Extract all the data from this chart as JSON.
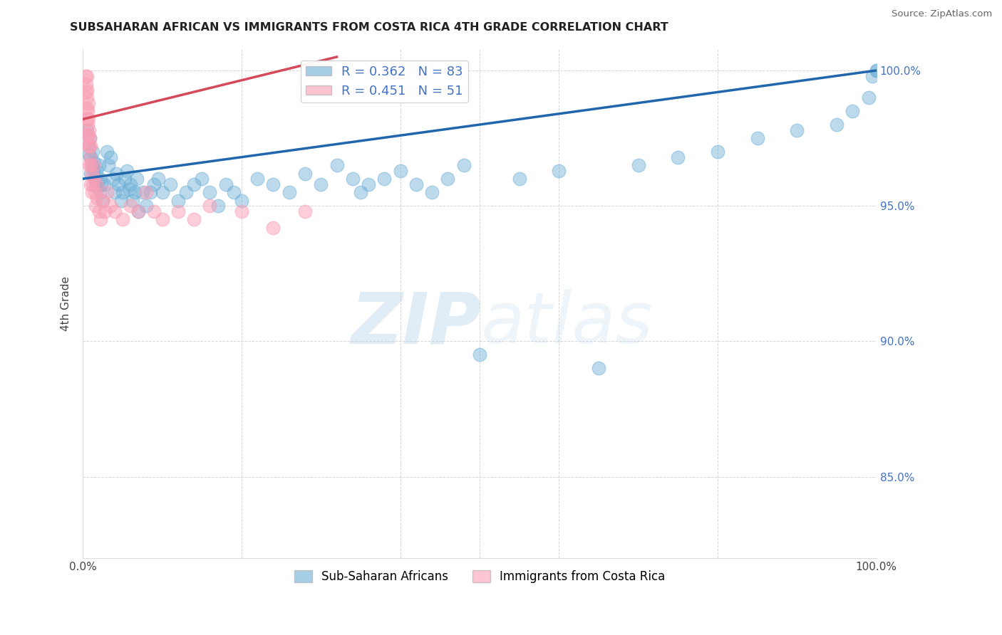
{
  "title": "SUBSAHARAN AFRICAN VS IMMIGRANTS FROM COSTA RICA 4TH GRADE CORRELATION CHART",
  "source": "Source: ZipAtlas.com",
  "xlabel_legend": "Sub-Saharan Africans",
  "ylabel_legend": "Immigrants from Costa Rica",
  "ylabel": "4th Grade",
  "xlim": [
    0.0,
    1.0
  ],
  "ylim": [
    0.82,
    1.008
  ],
  "y_ticks": [
    0.85,
    0.9,
    0.95,
    1.0
  ],
  "y_tick_labels": [
    "85.0%",
    "90.0%",
    "95.0%",
    "100.0%"
  ],
  "R_blue": 0.362,
  "N_blue": 83,
  "R_pink": 0.451,
  "N_pink": 51,
  "blue_color": "#6baed6",
  "pink_color": "#fa9fb5",
  "blue_line_color": "#2166ac",
  "pink_line_color": "#d6495a",
  "watermark_zip": "ZIP",
  "watermark_atlas": "atlas",
  "blue_scatter_x": [
    0.005,
    0.007,
    0.008,
    0.009,
    0.01,
    0.01,
    0.011,
    0.012,
    0.013,
    0.014,
    0.015,
    0.016,
    0.017,
    0.018,
    0.02,
    0.021,
    0.022,
    0.023,
    0.025,
    0.027,
    0.03,
    0.032,
    0.035,
    0.038,
    0.04,
    0.042,
    0.045,
    0.048,
    0.05,
    0.053,
    0.055,
    0.058,
    0.06,
    0.063,
    0.065,
    0.068,
    0.07,
    0.075,
    0.08,
    0.085,
    0.09,
    0.095,
    0.1,
    0.11,
    0.12,
    0.13,
    0.14,
    0.15,
    0.16,
    0.17,
    0.18,
    0.19,
    0.2,
    0.22,
    0.24,
    0.26,
    0.28,
    0.3,
    0.32,
    0.34,
    0.35,
    0.36,
    0.38,
    0.4,
    0.42,
    0.44,
    0.46,
    0.48,
    0.5,
    0.55,
    0.6,
    0.65,
    0.7,
    0.75,
    0.8,
    0.85,
    0.9,
    0.95,
    0.97,
    0.99,
    0.995,
    1.0,
    1.0
  ],
  "blue_scatter_y": [
    0.978,
    0.972,
    0.969,
    0.975,
    0.968,
    0.962,
    0.965,
    0.97,
    0.963,
    0.966,
    0.96,
    0.958,
    0.963,
    0.957,
    0.965,
    0.96,
    0.955,
    0.958,
    0.952,
    0.958,
    0.97,
    0.965,
    0.968,
    0.96,
    0.955,
    0.962,
    0.958,
    0.952,
    0.955,
    0.96,
    0.963,
    0.956,
    0.958,
    0.952,
    0.955,
    0.96,
    0.948,
    0.955,
    0.95,
    0.955,
    0.958,
    0.96,
    0.955,
    0.958,
    0.952,
    0.955,
    0.958,
    0.96,
    0.955,
    0.95,
    0.958,
    0.955,
    0.952,
    0.96,
    0.958,
    0.955,
    0.962,
    0.958,
    0.965,
    0.96,
    0.955,
    0.958,
    0.96,
    0.963,
    0.958,
    0.955,
    0.96,
    0.965,
    0.895,
    0.96,
    0.963,
    0.89,
    0.965,
    0.968,
    0.97,
    0.975,
    0.978,
    0.98,
    0.985,
    0.99,
    0.998,
    1.0,
    1.0
  ],
  "pink_scatter_x": [
    0.003,
    0.004,
    0.004,
    0.005,
    0.005,
    0.005,
    0.005,
    0.005,
    0.006,
    0.006,
    0.006,
    0.007,
    0.007,
    0.007,
    0.007,
    0.008,
    0.008,
    0.008,
    0.009,
    0.009,
    0.01,
    0.01,
    0.01,
    0.011,
    0.011,
    0.012,
    0.013,
    0.014,
    0.015,
    0.016,
    0.017,
    0.018,
    0.02,
    0.022,
    0.025,
    0.028,
    0.03,
    0.035,
    0.04,
    0.05,
    0.06,
    0.07,
    0.08,
    0.09,
    0.1,
    0.12,
    0.14,
    0.16,
    0.2,
    0.24,
    0.28
  ],
  "pink_scatter_y": [
    0.998,
    0.995,
    0.992,
    0.998,
    0.993,
    0.99,
    0.986,
    0.982,
    0.985,
    0.98,
    0.976,
    0.988,
    0.982,
    0.976,
    0.972,
    0.978,
    0.972,
    0.965,
    0.975,
    0.968,
    0.972,
    0.965,
    0.958,
    0.962,
    0.955,
    0.958,
    0.965,
    0.96,
    0.955,
    0.95,
    0.958,
    0.953,
    0.948,
    0.945,
    0.952,
    0.948,
    0.955,
    0.95,
    0.948,
    0.945,
    0.95,
    0.948,
    0.955,
    0.948,
    0.945,
    0.948,
    0.945,
    0.95,
    0.948,
    0.942,
    0.948
  ],
  "blue_trendline_x": [
    0.0,
    1.0
  ],
  "blue_trendline_y": [
    0.96,
    1.0
  ],
  "pink_trendline_x": [
    0.0,
    0.32
  ],
  "pink_trendline_y": [
    0.982,
    1.005
  ]
}
